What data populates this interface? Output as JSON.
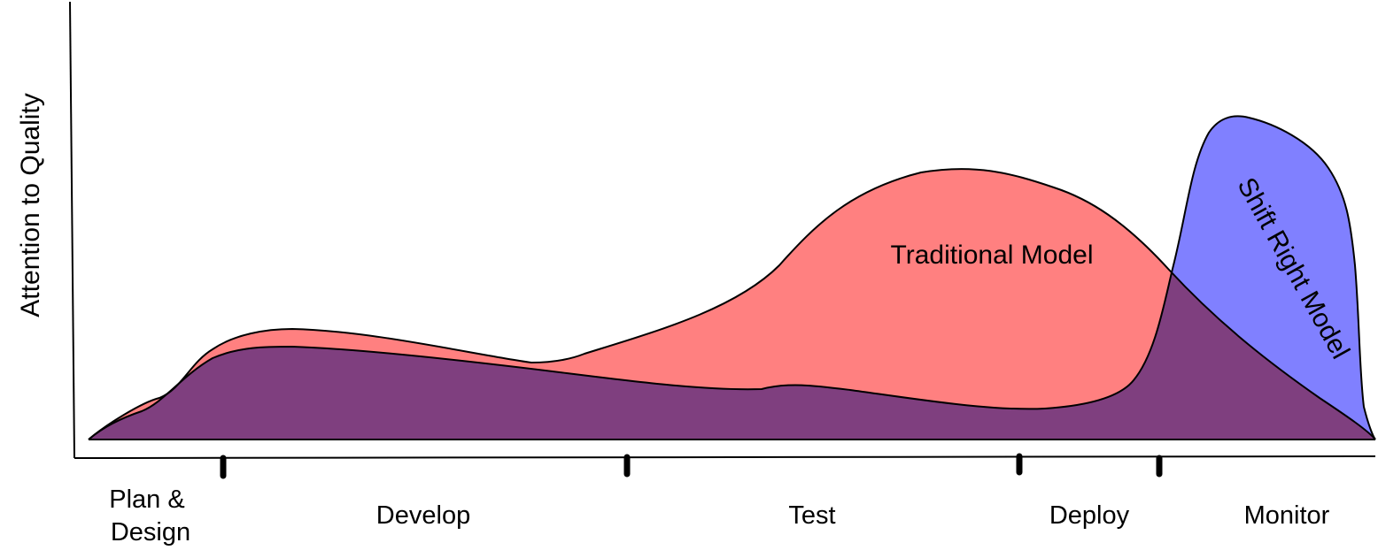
{
  "y_axis_label": "Attention to Quality",
  "stages": [
    {
      "lines": [
        "Plan &",
        "Design"
      ]
    },
    {
      "lines": [
        "Develop"
      ]
    },
    {
      "lines": [
        "Test"
      ]
    },
    {
      "lines": [
        "Deploy"
      ]
    },
    {
      "lines": [
        "Monitor"
      ]
    }
  ],
  "areas": {
    "traditional": {
      "label": "Traditional Model",
      "color": "#FF8080"
    },
    "shift_right": {
      "label": "Shift Right Model",
      "color": "#8080FF"
    },
    "overlap_color": "#7F3F7F"
  }
}
